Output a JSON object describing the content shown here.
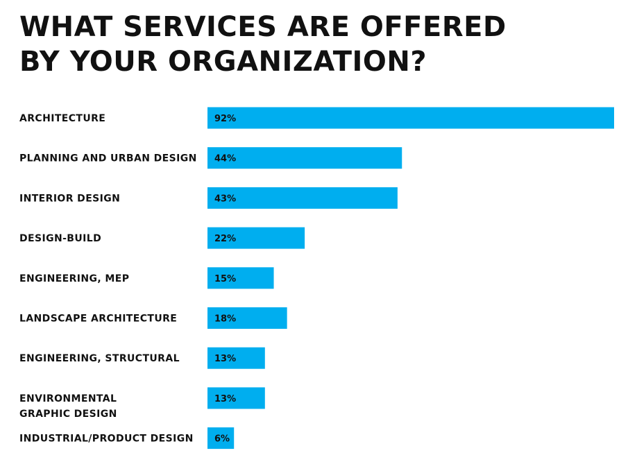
{
  "title_lines": [
    "WHAT SERVICES ARE OFFERED",
    "BY YOUR ORGANIZATION?"
  ],
  "colors": {
    "bar": "#00AEEF",
    "text": "#111111",
    "background": "#ffffff"
  },
  "chart_data": {
    "type": "bar",
    "orientation": "horizontal",
    "title": "WHAT SERVICES ARE OFFERED BY YOUR ORGANIZATION?",
    "categories": [
      "ARCHITECTURE",
      "PLANNING AND URBAN DESIGN",
      "INTERIOR DESIGN",
      "DESIGN-BUILD",
      "ENGINEERING, MEP",
      "LANDSCAPE ARCHITECTURE",
      "ENGINEERING, STRUCTURAL",
      "ENVIRONMENTAL\nGRAPHIC DESIGN",
      "INDUSTRIAL/PRODUCT DESIGN"
    ],
    "values": [
      92,
      44,
      43,
      22,
      15,
      18,
      13,
      13,
      6
    ],
    "value_labels": [
      "92%",
      "44%",
      "43%",
      "22%",
      "15%",
      "18%",
      "13%",
      "13%",
      "6%"
    ],
    "unit": "%",
    "xlim": [
      0,
      92
    ],
    "grid": false,
    "legend": "none"
  }
}
